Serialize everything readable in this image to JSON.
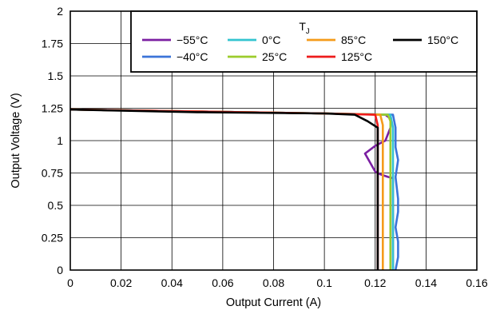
{
  "chart_data": {
    "type": "line",
    "title": "",
    "xlabel": "Output Current (A)",
    "ylabel": "Output Voltage (V)",
    "xlim": [
      0,
      0.16
    ],
    "ylim": [
      0,
      2
    ],
    "xticks": [
      "0",
      "0.02",
      "0.04",
      "0.06",
      "0.08",
      "0.1",
      "0.12",
      "0.14",
      "0.16"
    ],
    "yticks": [
      "0",
      "0.25",
      "0.5",
      "0.75",
      "1",
      "1.25",
      "1.5",
      "1.75",
      "2"
    ],
    "grid": true,
    "legend": {
      "title": "T",
      "title_subscript": "J",
      "placement": "top-right"
    },
    "series": [
      {
        "name": "−55°C",
        "color": "#7b1fa2",
        "points": [
          [
            0,
            1.24
          ],
          [
            0.1,
            1.21
          ],
          [
            0.124,
            1.2
          ],
          [
            0.126,
            1.17
          ],
          [
            0.126,
            1.1
          ],
          [
            0.125,
            1.05
          ],
          [
            0.124,
            1.0
          ],
          [
            0.12,
            0.96
          ],
          [
            0.116,
            0.9
          ],
          [
            0.118,
            0.83
          ],
          [
            0.12,
            0.76
          ],
          [
            0.122,
            0.74
          ],
          [
            0.125,
            0.72
          ],
          [
            0.127,
            0.71
          ],
          [
            0.127,
            0.6
          ],
          [
            0.127,
            0.45
          ],
          [
            0.127,
            0.3
          ],
          [
            0.127,
            0.15
          ],
          [
            0.127,
            0
          ]
        ]
      },
      {
        "name": "−40°C",
        "color": "#3b74d9",
        "points": [
          [
            0,
            1.24
          ],
          [
            0.1,
            1.21
          ],
          [
            0.127,
            1.2
          ],
          [
            0.128,
            1.1
          ],
          [
            0.128,
            0.95
          ],
          [
            0.129,
            0.85
          ],
          [
            0.128,
            0.72
          ],
          [
            0.129,
            0.55
          ],
          [
            0.129,
            0.45
          ],
          [
            0.128,
            0.33
          ],
          [
            0.129,
            0.22
          ],
          [
            0.129,
            0.1
          ],
          [
            0.128,
            0
          ]
        ]
      },
      {
        "name": "0°C",
        "color": "#33c4d0",
        "points": [
          [
            0,
            1.24
          ],
          [
            0.1,
            1.21
          ],
          [
            0.126,
            1.2
          ],
          [
            0.127,
            1.1
          ],
          [
            0.127,
            0.95
          ],
          [
            0.127,
            0.8
          ],
          [
            0.127,
            0.6
          ],
          [
            0.127,
            0.45
          ],
          [
            0.127,
            0.3
          ],
          [
            0.127,
            0.15
          ],
          [
            0.127,
            0
          ]
        ]
      },
      {
        "name": "25°C",
        "color": "#9ccc2c",
        "points": [
          [
            0,
            1.24
          ],
          [
            0.1,
            1.21
          ],
          [
            0.125,
            1.2
          ],
          [
            0.126,
            1.15
          ],
          [
            0.126,
            1.0
          ],
          [
            0.126,
            0.8
          ],
          [
            0.126,
            0.6
          ],
          [
            0.126,
            0.4
          ],
          [
            0.126,
            0.2
          ],
          [
            0.126,
            0
          ]
        ]
      },
      {
        "name": "85°C",
        "color": "#f59b1a",
        "points": [
          [
            0,
            1.24
          ],
          [
            0.1,
            1.21
          ],
          [
            0.122,
            1.2
          ],
          [
            0.123,
            1.12
          ],
          [
            0.123,
            0.9
          ],
          [
            0.123,
            0.6
          ],
          [
            0.123,
            0.3
          ],
          [
            0.123,
            0
          ]
        ]
      },
      {
        "name": "125°C",
        "color": "#ee1c1c",
        "points": [
          [
            0,
            1.24
          ],
          [
            0.1,
            1.21
          ],
          [
            0.12,
            1.2
          ],
          [
            0.121,
            1.12
          ],
          [
            0.121,
            0.9
          ],
          [
            0.121,
            0.6
          ],
          [
            0.121,
            0.3
          ],
          [
            0.121,
            0
          ]
        ]
      },
      {
        "name": "150°C",
        "color": "#000000",
        "points": [
          [
            0,
            1.24
          ],
          [
            0.05,
            1.22
          ],
          [
            0.1,
            1.21
          ],
          [
            0.112,
            1.2
          ],
          [
            0.117,
            1.15
          ],
          [
            0.121,
            1.1
          ],
          [
            0.121,
            0.9
          ],
          [
            0.121,
            0.6
          ],
          [
            0.121,
            0.3
          ],
          [
            0.121,
            0
          ]
        ]
      }
    ]
  }
}
